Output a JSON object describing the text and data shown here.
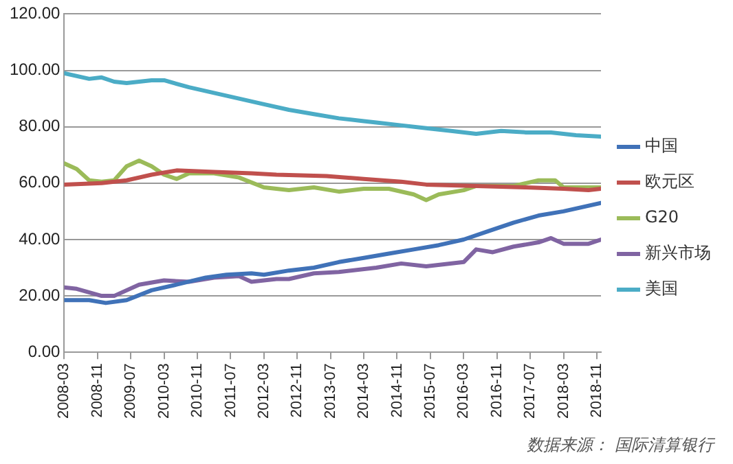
{
  "chart_data": {
    "type": "line",
    "annotations": [
      "数据来源：  国际清算银行"
    ],
    "xlim": [
      "2008-03",
      "2018-12"
    ],
    "xticks": [
      "2008-03",
      "2008-11",
      "2009-07",
      "2010-03",
      "2010-11",
      "2011-07",
      "2012-03",
      "2012-11",
      "2013-07",
      "2014-03",
      "2014-11",
      "2015-07",
      "2016-03",
      "2016-11",
      "2017-07",
      "2018-03",
      "2018-11"
    ],
    "ylim": [
      0,
      120
    ],
    "yticks": [
      {
        "value": 0,
        "label": "0.00"
      },
      {
        "value": 20,
        "label": "20.00"
      },
      {
        "value": 40,
        "label": "40.00"
      },
      {
        "value": 60,
        "label": "60.00"
      },
      {
        "value": 80,
        "label": "80.00"
      },
      {
        "value": 100,
        "label": "100.00"
      },
      {
        "value": 120,
        "label": "120.00"
      }
    ],
    "grid": "y",
    "legend": "right",
    "marker": "none",
    "line_style": "solid",
    "series": [
      {
        "name": "中国",
        "color": "#4072b8",
        "x": [
          "2008-03",
          "2008-09",
          "2009-01",
          "2009-06",
          "2009-12",
          "2010-06",
          "2011-01",
          "2011-06",
          "2011-12",
          "2012-03",
          "2012-09",
          "2013-03",
          "2013-09",
          "2014-03",
          "2014-09",
          "2015-03",
          "2015-09",
          "2016-03",
          "2016-09",
          "2017-03",
          "2017-09",
          "2018-03",
          "2018-12"
        ],
        "values": [
          18.5,
          18.5,
          17.5,
          18.5,
          22,
          24,
          26.5,
          27.5,
          28,
          27.5,
          29,
          30,
          32,
          33.5,
          35,
          36.5,
          38,
          40,
          43,
          46,
          48.5,
          50,
          53
        ]
      },
      {
        "name": "欧元区",
        "color": "#c0504d",
        "x": [
          "2008-03",
          "2008-12",
          "2009-06",
          "2009-12",
          "2010-06",
          "2011-03",
          "2011-12",
          "2012-06",
          "2013-06",
          "2014-03",
          "2014-12",
          "2015-06",
          "2016-06",
          "2017-06",
          "2018-03",
          "2018-09",
          "2018-12"
        ],
        "values": [
          59.5,
          60,
          61,
          63,
          64.5,
          64,
          63.5,
          63,
          62.5,
          61.5,
          60.5,
          59.5,
          59,
          58.5,
          58,
          57.5,
          58
        ]
      },
      {
        "name": "G20",
        "color": "#9bbb59",
        "x": [
          "2008-03",
          "2008-06",
          "2008-09",
          "2008-12",
          "2009-03",
          "2009-06",
          "2009-09",
          "2009-12",
          "2010-03",
          "2010-06",
          "2010-09",
          "2011-03",
          "2011-09",
          "2012-03",
          "2012-09",
          "2013-03",
          "2013-09",
          "2014-03",
          "2014-09",
          "2015-03",
          "2015-06",
          "2015-09",
          "2016-03",
          "2016-06",
          "2017-03",
          "2017-09",
          "2018-01",
          "2018-03",
          "2018-12"
        ],
        "values": [
          67,
          65,
          61,
          60.5,
          61,
          66,
          68,
          66,
          63,
          61.5,
          63.5,
          63.5,
          62,
          58.5,
          57.5,
          58.5,
          57,
          58,
          58,
          56,
          54,
          56,
          57.5,
          59,
          59,
          61,
          61,
          58.5,
          58.5
        ]
      },
      {
        "name": "新兴市场",
        "color": "#8064a2",
        "x": [
          "2008-03",
          "2008-06",
          "2008-12",
          "2009-03",
          "2009-09",
          "2010-03",
          "2010-09",
          "2011-03",
          "2011-09",
          "2011-12",
          "2012-06",
          "2012-09",
          "2013-03",
          "2013-09",
          "2014-06",
          "2014-12",
          "2015-06",
          "2016-03",
          "2016-06",
          "2016-10",
          "2017-03",
          "2017-09",
          "2017-12",
          "2018-03",
          "2018-09",
          "2018-12"
        ],
        "values": [
          23,
          22.5,
          20,
          20,
          24,
          25.5,
          25,
          26.5,
          27,
          25,
          26,
          26,
          28,
          28.5,
          30,
          31.5,
          30.5,
          32,
          36.5,
          35.5,
          37.5,
          39,
          40.5,
          38.5,
          38.5,
          40
        ]
      },
      {
        "name": "美国",
        "color": "#4bacc6",
        "x": [
          "2008-03",
          "2008-09",
          "2008-12",
          "2009-03",
          "2009-06",
          "2009-12",
          "2010-03",
          "2010-09",
          "2011-03",
          "2011-09",
          "2012-03",
          "2012-09",
          "2013-03",
          "2013-09",
          "2014-03",
          "2014-06",
          "2014-12",
          "2015-06",
          "2015-12",
          "2016-06",
          "2016-12",
          "2017-06",
          "2017-12",
          "2018-06",
          "2018-12"
        ],
        "values": [
          99,
          97,
          97.5,
          96,
          95.5,
          96.5,
          96.5,
          94,
          92,
          90,
          88,
          86,
          84.5,
          83,
          82,
          81.5,
          80.5,
          79.5,
          78.5,
          77.5,
          78.5,
          78,
          78,
          77,
          76.5
        ]
      }
    ]
  }
}
